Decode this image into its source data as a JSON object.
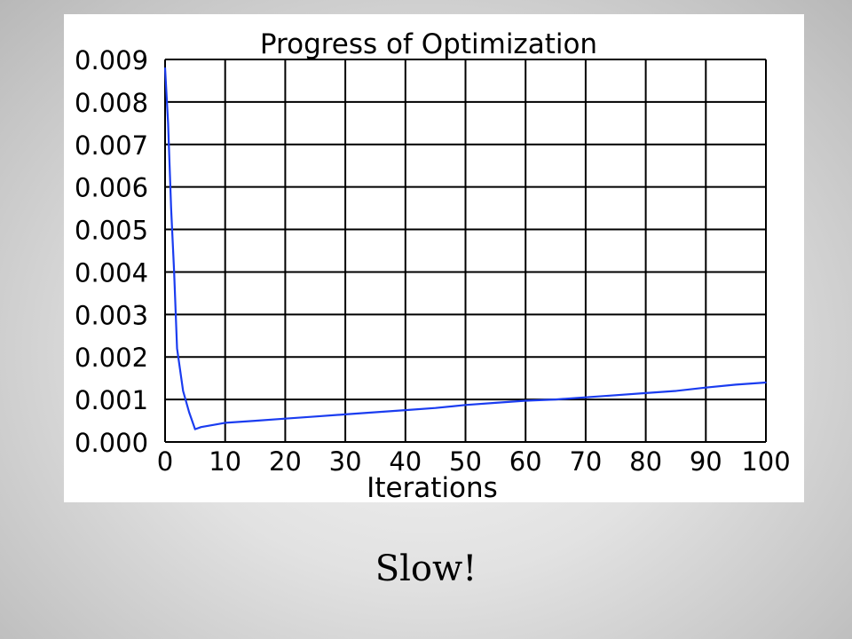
{
  "slide": {
    "caption": "Slow!"
  },
  "chart_data": {
    "type": "line",
    "title": "Progress of Optimization",
    "xlabel": "Iterations",
    "ylabel": "",
    "xlim": [
      0,
      100
    ],
    "ylim": [
      0,
      0.009
    ],
    "grid": true,
    "x_ticks": [
      "0",
      "10",
      "20",
      "30",
      "40",
      "50",
      "60",
      "70",
      "80",
      "90",
      "100"
    ],
    "y_ticks": [
      "0.000",
      "0.001",
      "0.002",
      "0.003",
      "0.004",
      "0.005",
      "0.006",
      "0.007",
      "0.008",
      "0.009"
    ],
    "series": [
      {
        "color": "#1a3cf0",
        "x": [
          0,
          0.5,
          1,
          1.5,
          2,
          3,
          4,
          5,
          6,
          8,
          10,
          15,
          20,
          25,
          30,
          35,
          40,
          45,
          50,
          55,
          60,
          65,
          70,
          75,
          80,
          85,
          90,
          95,
          100
        ],
        "y": [
          0.0088,
          0.0075,
          0.0055,
          0.004,
          0.0022,
          0.0012,
          0.0007,
          0.0003,
          0.00035,
          0.0004,
          0.00045,
          0.0005,
          0.00055,
          0.0006,
          0.00065,
          0.0007,
          0.00075,
          0.0008,
          0.00087,
          0.00092,
          0.00097,
          0.001,
          0.00105,
          0.0011,
          0.00115,
          0.0012,
          0.00128,
          0.00135,
          0.0014
        ]
      }
    ]
  }
}
